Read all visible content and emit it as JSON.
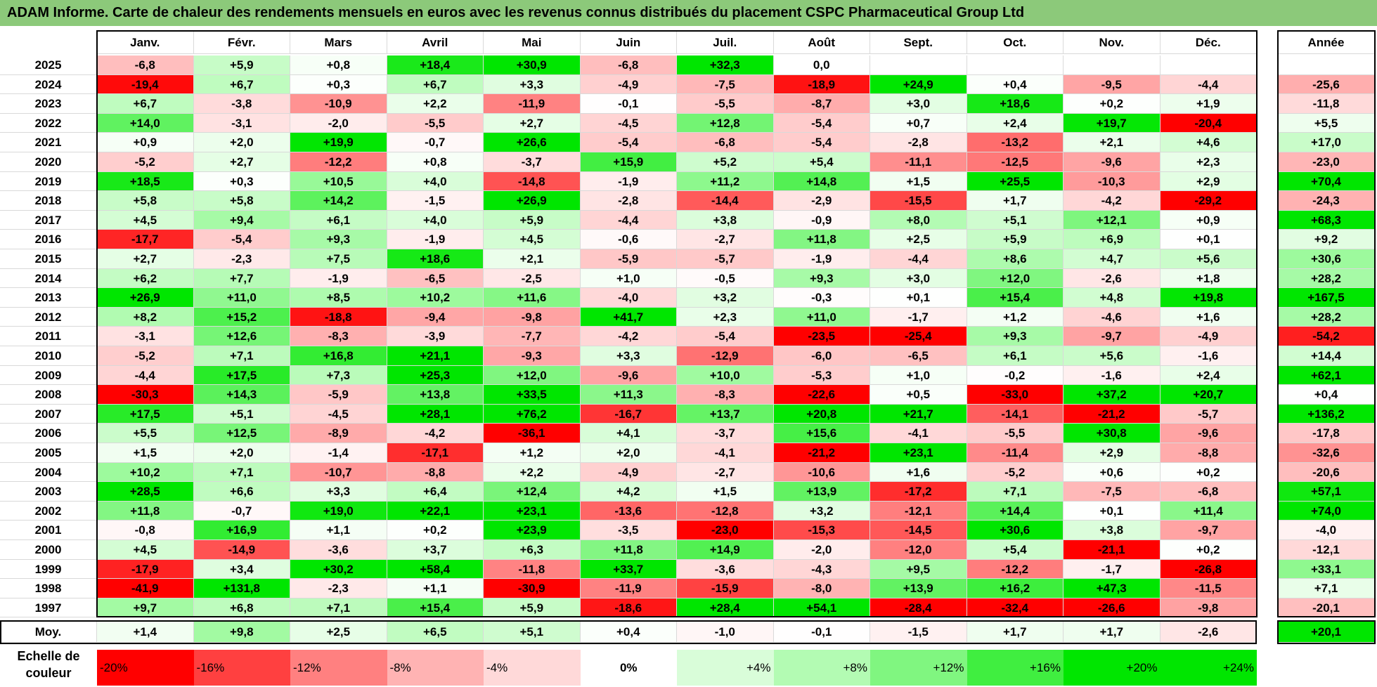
{
  "title": "ADAM Informe. Carte de chaleur des rendements mensuels en euros avec les revenus connus distribués du placement CSPC Pharmaceutical Group Ltd",
  "colors": {
    "title_bg": "#8cc97a",
    "max_red": "#ff0000",
    "max_green": "#00e600",
    "neutral": "#ffffff"
  },
  "chart_data": {
    "type": "heatmap",
    "title": "ADAM Informe. Carte de chaleur des rendements mensuels en euros avec les revenus connus distribués du placement CSPC Pharmaceutical Group Ltd",
    "months": [
      "Janv.",
      "Févr.",
      "Mars",
      "Avril",
      "Mai",
      "Juin",
      "Juil.",
      "Août",
      "Sept.",
      "Oct.",
      "Nov.",
      "Déc."
    ],
    "year_header": "Année",
    "rows": [
      {
        "year": "2025",
        "values": [
          "-6,8",
          "+5,9",
          "+0,8",
          "+18,4",
          "+30,9",
          "-6,8",
          "+32,3",
          "0,0",
          "",
          "",
          "",
          ""
        ],
        "annual": ""
      },
      {
        "year": "2024",
        "values": [
          "-19,4",
          "+6,7",
          "+0,3",
          "+6,7",
          "+3,3",
          "-4,9",
          "-7,5",
          "-18,9",
          "+24,9",
          "+0,4",
          "-9,5",
          "-4,4"
        ],
        "annual": "-25,6"
      },
      {
        "year": "2023",
        "values": [
          "+6,7",
          "-3,8",
          "-10,9",
          "+2,2",
          "-11,9",
          "-0,1",
          "-5,5",
          "-8,7",
          "+3,0",
          "+18,6",
          "+0,2",
          "+1,9"
        ],
        "annual": "-11,8"
      },
      {
        "year": "2022",
        "values": [
          "+14,0",
          "-3,1",
          "-2,0",
          "-5,5",
          "+2,7",
          "-4,5",
          "+12,8",
          "-5,4",
          "+0,7",
          "+2,4",
          "+19,7",
          "-20,4"
        ],
        "annual": "+5,5"
      },
      {
        "year": "2021",
        "values": [
          "+0,9",
          "+2,0",
          "+19,9",
          "-0,7",
          "+26,6",
          "-5,4",
          "-6,8",
          "-5,4",
          "-2,8",
          "-13,2",
          "+2,1",
          "+4,6"
        ],
        "annual": "+17,0"
      },
      {
        "year": "2020",
        "values": [
          "-5,2",
          "+2,7",
          "-12,2",
          "+0,8",
          "-3,7",
          "+15,9",
          "+5,2",
          "+5,4",
          "-11,1",
          "-12,5",
          "-9,6",
          "+2,3"
        ],
        "annual": "-23,0"
      },
      {
        "year": "2019",
        "values": [
          "+18,5",
          "+0,3",
          "+10,5",
          "+4,0",
          "-14,8",
          "-1,9",
          "+11,2",
          "+14,8",
          "+1,5",
          "+25,5",
          "-10,3",
          "+2,9"
        ],
        "annual": "+70,4"
      },
      {
        "year": "2018",
        "values": [
          "+5,8",
          "+5,8",
          "+14,2",
          "-1,5",
          "+26,9",
          "-2,8",
          "-14,4",
          "-2,9",
          "-15,5",
          "+1,7",
          "-4,2",
          "-29,2"
        ],
        "annual": "-24,3"
      },
      {
        "year": "2017",
        "values": [
          "+4,5",
          "+9,4",
          "+6,1",
          "+4,0",
          "+5,9",
          "-4,4",
          "+3,8",
          "-0,9",
          "+8,0",
          "+5,1",
          "+12,1",
          "+0,9"
        ],
        "annual": "+68,3"
      },
      {
        "year": "2016",
        "values": [
          "-17,7",
          "-5,4",
          "+9,3",
          "-1,9",
          "+4,5",
          "-0,6",
          "-2,7",
          "+11,8",
          "+2,5",
          "+5,9",
          "+6,9",
          "+0,1"
        ],
        "annual": "+9,2"
      },
      {
        "year": "2015",
        "values": [
          "+2,7",
          "-2,3",
          "+7,5",
          "+18,6",
          "+2,1",
          "-5,9",
          "-5,7",
          "-1,9",
          "-4,4",
          "+8,6",
          "+4,7",
          "+5,6"
        ],
        "annual": "+30,6"
      },
      {
        "year": "2014",
        "values": [
          "+6,2",
          "+7,7",
          "-1,9",
          "-6,5",
          "-2,5",
          "+1,0",
          "-0,5",
          "+9,3",
          "+3,0",
          "+12,0",
          "-2,6",
          "+1,8"
        ],
        "annual": "+28,2"
      },
      {
        "year": "2013",
        "values": [
          "+26,9",
          "+11,0",
          "+8,5",
          "+10,2",
          "+11,6",
          "-4,0",
          "+3,2",
          "-0,3",
          "+0,1",
          "+15,4",
          "+4,8",
          "+19,8"
        ],
        "annual": "+167,5"
      },
      {
        "year": "2012",
        "values": [
          "+8,2",
          "+15,2",
          "-18,8",
          "-9,4",
          "-9,8",
          "+41,7",
          "+2,3",
          "+11,0",
          "-1,7",
          "+1,2",
          "-4,6",
          "+1,6"
        ],
        "annual": "+28,2"
      },
      {
        "year": "2011",
        "values": [
          "-3,1",
          "+12,6",
          "-8,3",
          "-3,9",
          "-7,7",
          "-4,2",
          "-5,4",
          "-23,5",
          "-25,4",
          "+9,3",
          "-9,7",
          "-4,9"
        ],
        "annual": "-54,2"
      },
      {
        "year": "2010",
        "values": [
          "-5,2",
          "+7,1",
          "+16,8",
          "+21,1",
          "-9,3",
          "+3,3",
          "-12,9",
          "-6,0",
          "-6,5",
          "+6,1",
          "+5,6",
          "-1,6"
        ],
        "annual": "+14,4"
      },
      {
        "year": "2009",
        "values": [
          "-4,4",
          "+17,5",
          "+7,3",
          "+25,3",
          "+12,0",
          "-9,6",
          "+10,0",
          "-5,3",
          "+1,0",
          "-0,2",
          "-1,6",
          "+2,4"
        ],
        "annual": "+62,1"
      },
      {
        "year": "2008",
        "values": [
          "-30,3",
          "+14,3",
          "-5,9",
          "+13,8",
          "+33,5",
          "+11,3",
          "-8,3",
          "-22,6",
          "+0,5",
          "-33,0",
          "+37,2",
          "+20,7"
        ],
        "annual": "+0,4"
      },
      {
        "year": "2007",
        "values": [
          "+17,5",
          "+5,1",
          "-4,5",
          "+28,1",
          "+76,2",
          "-16,7",
          "+13,7",
          "+20,8",
          "+21,7",
          "-14,1",
          "-21,2",
          "-5,7"
        ],
        "annual": "+136,2"
      },
      {
        "year": "2006",
        "values": [
          "+5,5",
          "+12,5",
          "-8,9",
          "-4,2",
          "-36,1",
          "+4,1",
          "-3,7",
          "+15,6",
          "-4,1",
          "-5,5",
          "+30,8",
          "-9,6"
        ],
        "annual": "-17,8"
      },
      {
        "year": "2005",
        "values": [
          "+1,5",
          "+2,0",
          "-1,4",
          "-17,1",
          "+1,2",
          "+2,0",
          "-4,1",
          "-21,2",
          "+23,1",
          "-11,4",
          "+2,9",
          "-8,8"
        ],
        "annual": "-32,6"
      },
      {
        "year": "2004",
        "values": [
          "+10,2",
          "+7,1",
          "-10,7",
          "-8,8",
          "+2,2",
          "-4,9",
          "-2,7",
          "-10,6",
          "+1,6",
          "-5,2",
          "+0,6",
          "+0,2"
        ],
        "annual": "-20,6"
      },
      {
        "year": "2003",
        "values": [
          "+28,5",
          "+6,6",
          "+3,3",
          "+6,4",
          "+12,4",
          "+4,2",
          "+1,5",
          "+13,9",
          "-17,2",
          "+7,1",
          "-7,5",
          "-6,8"
        ],
        "annual": "+57,1"
      },
      {
        "year": "2002",
        "values": [
          "+11,8",
          "-0,7",
          "+19,0",
          "+22,1",
          "+23,1",
          "-13,6",
          "-12,8",
          "+3,2",
          "-12,1",
          "+14,4",
          "+0,1",
          "+11,4"
        ],
        "annual": "+74,0"
      },
      {
        "year": "2001",
        "values": [
          "-0,8",
          "+16,9",
          "+1,1",
          "+0,2",
          "+23,9",
          "-3,5",
          "-23,0",
          "-15,3",
          "-14,5",
          "+30,6",
          "+3,8",
          "-9,7"
        ],
        "annual": "-4,0"
      },
      {
        "year": "2000",
        "values": [
          "+4,5",
          "-14,9",
          "-3,6",
          "+3,7",
          "+6,3",
          "+11,8",
          "+14,9",
          "-2,0",
          "-12,0",
          "+5,4",
          "-21,1",
          "+0,2"
        ],
        "annual": "-12,1"
      },
      {
        "year": "1999",
        "values": [
          "-17,9",
          "+3,4",
          "+30,2",
          "+58,4",
          "-11,8",
          "+33,7",
          "-3,6",
          "-4,3",
          "+9,5",
          "-12,2",
          "-1,7",
          "-26,8"
        ],
        "annual": "+33,1"
      },
      {
        "year": "1998",
        "values": [
          "-41,9",
          "+131,8",
          "-2,3",
          "+1,1",
          "-30,9",
          "-11,9",
          "-15,9",
          "-8,0",
          "+13,9",
          "+16,2",
          "+47,3",
          "-11,5"
        ],
        "annual": "+7,1"
      },
      {
        "year": "1997",
        "values": [
          "+9,7",
          "+6,8",
          "+7,1",
          "+15,4",
          "+5,9",
          "-18,6",
          "+28,4",
          "+54,1",
          "-28,4",
          "-32,4",
          "-26,6",
          "-9,8"
        ],
        "annual": "-20,1"
      }
    ],
    "average": {
      "label": "Moy.",
      "values": [
        "+1,4",
        "+9,8",
        "+2,5",
        "+6,5",
        "+5,1",
        "+0,4",
        "-1,0",
        "-0,1",
        "-1,5",
        "+1,7",
        "+1,7",
        "-2,6"
      ],
      "annual": "+20,1"
    },
    "color_scale": {
      "label": "Echelle de couleur",
      "stops": [
        "-20%",
        "-16%",
        "-12%",
        "-8%",
        "-4%",
        "0%",
        "+4%",
        "+8%",
        "+12%",
        "+16%",
        "+20%",
        "+24%"
      ],
      "values": [
        -20,
        -16,
        -12,
        -8,
        -4,
        0,
        4,
        8,
        12,
        16,
        20,
        24
      ]
    }
  }
}
